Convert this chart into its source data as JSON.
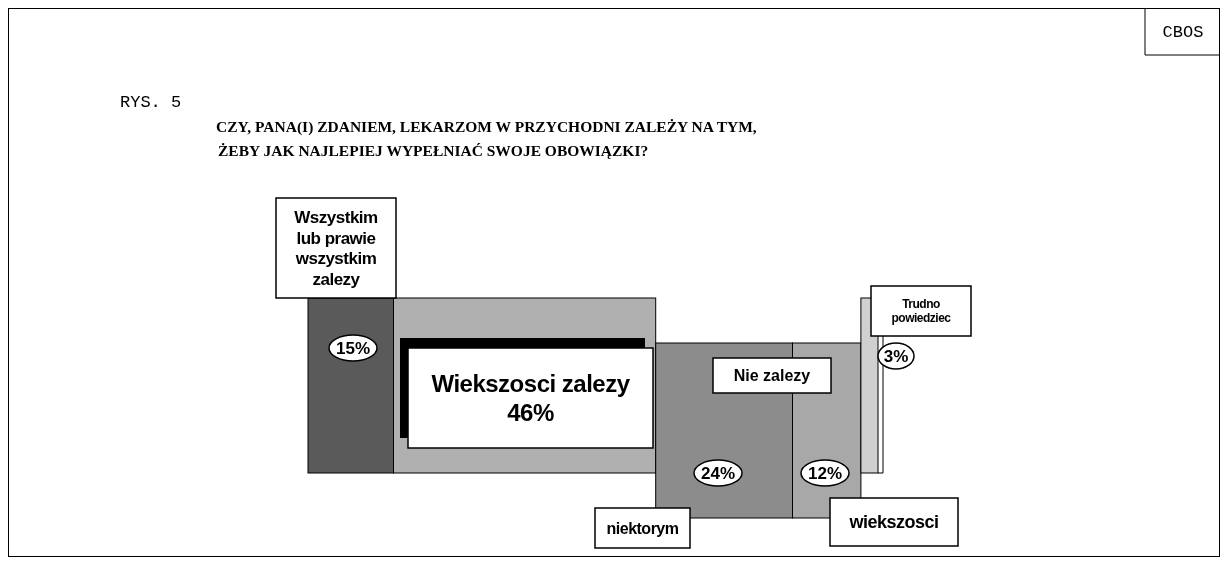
{
  "chart_data": {
    "type": "bar",
    "orientation": "horizontal",
    "stacked": true,
    "title": "CZY, PANA(I) ZDANIEM, LEKARZOM W PRZYCHODNI ZALEŻY NA TYM,\nŻEBY JAK NAJLEPIEJ WYPEŁNIAĆ SWOJE OBOWIĄZKI?",
    "categories": [
      null
    ],
    "series": [
      {
        "name": "Wszystkim lub prawie wszystkim zalezy",
        "color": "#5a5a5a",
        "values": [
          15
        ],
        "value_labels": [
          "15%"
        ]
      },
      {
        "name": "Wiekszosci zalezy",
        "color": "#b0b0b0",
        "values": [
          46
        ],
        "value_labels": [
          "46%"
        ]
      },
      {
        "name": "niektorym",
        "color": "#8c8c8c",
        "values": [
          24
        ],
        "value_labels": [
          "24%"
        ]
      },
      {
        "name": "wiekszosci",
        "color": "#a8a8a8",
        "values": [
          12
        ],
        "value_labels": [
          "12%"
        ]
      },
      {
        "name": "Trudno powiedziec",
        "color": "#d0d0d0",
        "values": [
          3
        ],
        "value_labels": [
          "3%"
        ]
      }
    ],
    "annotations": [
      "RYS. 5",
      "Nie zalezy",
      "CBOS"
    ]
  }
}
